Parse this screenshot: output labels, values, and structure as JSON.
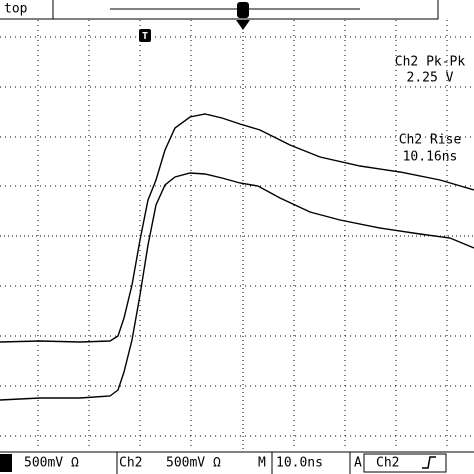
{
  "header": {
    "label": "top"
  },
  "measurements": [
    {
      "name": "Ch2 Pk-Pk",
      "value": "2.25 V"
    },
    {
      "name": "Ch2 Rise",
      "value": "10.16ns"
    }
  ],
  "status_bar": {
    "ch1_scale": "500mV Ω",
    "ch2_label": "Ch2",
    "ch2_scale": "500mV Ω",
    "time_prefix": "M",
    "time_scale": "10.0ns",
    "trigger_prefix": "A",
    "trigger_source": "Ch2"
  }
}
